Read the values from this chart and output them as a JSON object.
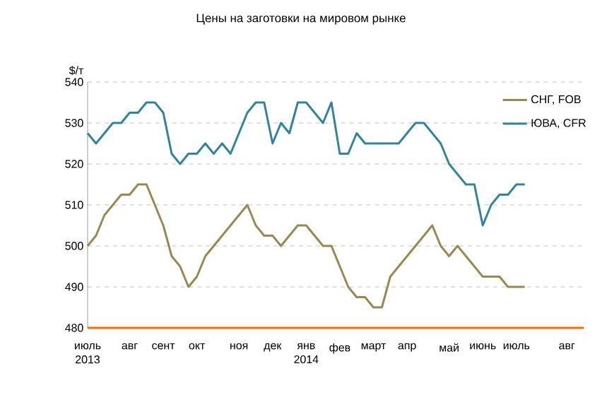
{
  "chart_data": {
    "type": "line",
    "title": "Цены на заготовки на мировом рынке",
    "ylabel": "$/т",
    "categories": [
      "июль 2013",
      null,
      null,
      null,
      null,
      "авг",
      null,
      null,
      null,
      "сент",
      null,
      null,
      null,
      "окт",
      null,
      null,
      null,
      null,
      "ноя",
      null,
      null,
      null,
      "дек",
      null,
      null,
      null,
      "янв 2014",
      null,
      null,
      null,
      "фев",
      null,
      null,
      null,
      "март",
      null,
      null,
      null,
      "апр",
      null,
      null,
      null,
      null,
      "май",
      null,
      null,
      null,
      "июнь",
      null,
      null,
      null,
      "июль",
      null,
      null,
      null,
      null,
      null,
      "авг",
      null,
      null
    ],
    "series": [
      {
        "name": "СНГ, FOB",
        "color": "#948a54",
        "values": [
          500,
          502.5,
          507.5,
          510,
          512.5,
          512.5,
          515,
          515,
          510,
          505,
          497.5,
          495,
          490,
          492.5,
          497.5,
          500,
          502.5,
          505,
          507.5,
          510,
          505,
          502.5,
          502.5,
          500,
          502.5,
          505,
          505,
          502.5,
          500,
          500,
          495,
          490,
          487.5,
          487.5,
          485,
          485,
          492.5,
          495,
          497.5,
          500,
          502.5,
          505,
          500,
          497.5,
          500,
          497.5,
          495,
          492.5,
          492.5,
          492.5,
          490,
          490,
          490,
          null,
          null,
          null,
          null,
          null,
          null,
          null
        ]
      },
      {
        "name": "ЮВА, CFR",
        "color": "#31849b",
        "values": [
          527.5,
          525,
          527.5,
          530,
          530,
          532.5,
          532.5,
          535,
          535,
          532.5,
          522.5,
          520,
          522.5,
          522.5,
          525,
          522.5,
          525,
          522.5,
          527.5,
          532.5,
          535,
          535,
          525,
          530,
          527.5,
          535,
          535,
          532.5,
          530,
          535,
          522.5,
          522.5,
          527.5,
          525,
          525,
          525,
          525,
          525,
          527.5,
          530,
          530,
          527.5,
          525,
          520,
          517.5,
          515,
          515,
          505,
          510,
          512.5,
          512.5,
          515,
          515,
          null,
          null,
          null,
          null,
          null,
          null,
          null
        ]
      }
    ],
    "ylim": [
      480,
      540
    ],
    "yticks": [
      480,
      490,
      500,
      510,
      520,
      530,
      540
    ],
    "grid": "y",
    "legend": "top right",
    "line_style": "solid",
    "marker": "none"
  }
}
